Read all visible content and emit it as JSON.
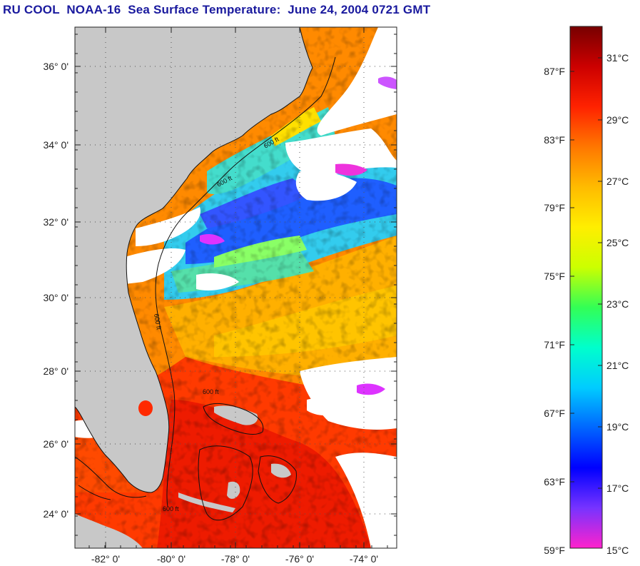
{
  "title": "RU COOL  NOAA-16  Sea Surface Temperature:  June 24, 2004 0721 GMT",
  "colors": {
    "land": "#c8c8c8",
    "cloud": "#ffffff",
    "title": "#1a1a9e"
  },
  "map": {
    "lat_labels": [
      "36° 0'",
      "34° 0'",
      "32° 0'",
      "30° 0'",
      "28° 0'",
      "26° 0'",
      "24° 0'"
    ],
    "lon_labels": [
      "-82° 0'",
      "-80° 0'",
      "-78° 0'",
      "-76° 0'",
      "-74° 0'"
    ],
    "isobath_labels": [
      "600 ft",
      "600 ft",
      "600 ft",
      "600 ft",
      "600 ft"
    ]
  },
  "colorbar": {
    "fahrenheit": [
      "87°F",
      "83°F",
      "79°F",
      "75°F",
      "71°F",
      "67°F",
      "63°F",
      "59°F"
    ],
    "celsius": [
      "31°C",
      "29°C",
      "27°C",
      "25°C",
      "23°C",
      "21°C",
      "19°C",
      "17°C",
      "15°C"
    ],
    "stops": [
      "#ff22cc",
      "#7733ff",
      "#0000ff",
      "#0066ff",
      "#00ccff",
      "#00ffcc",
      "#33ff55",
      "#ccff00",
      "#ffee00",
      "#ffbb00",
      "#ff7700",
      "#ff2200",
      "#cc0000",
      "#770000"
    ]
  }
}
